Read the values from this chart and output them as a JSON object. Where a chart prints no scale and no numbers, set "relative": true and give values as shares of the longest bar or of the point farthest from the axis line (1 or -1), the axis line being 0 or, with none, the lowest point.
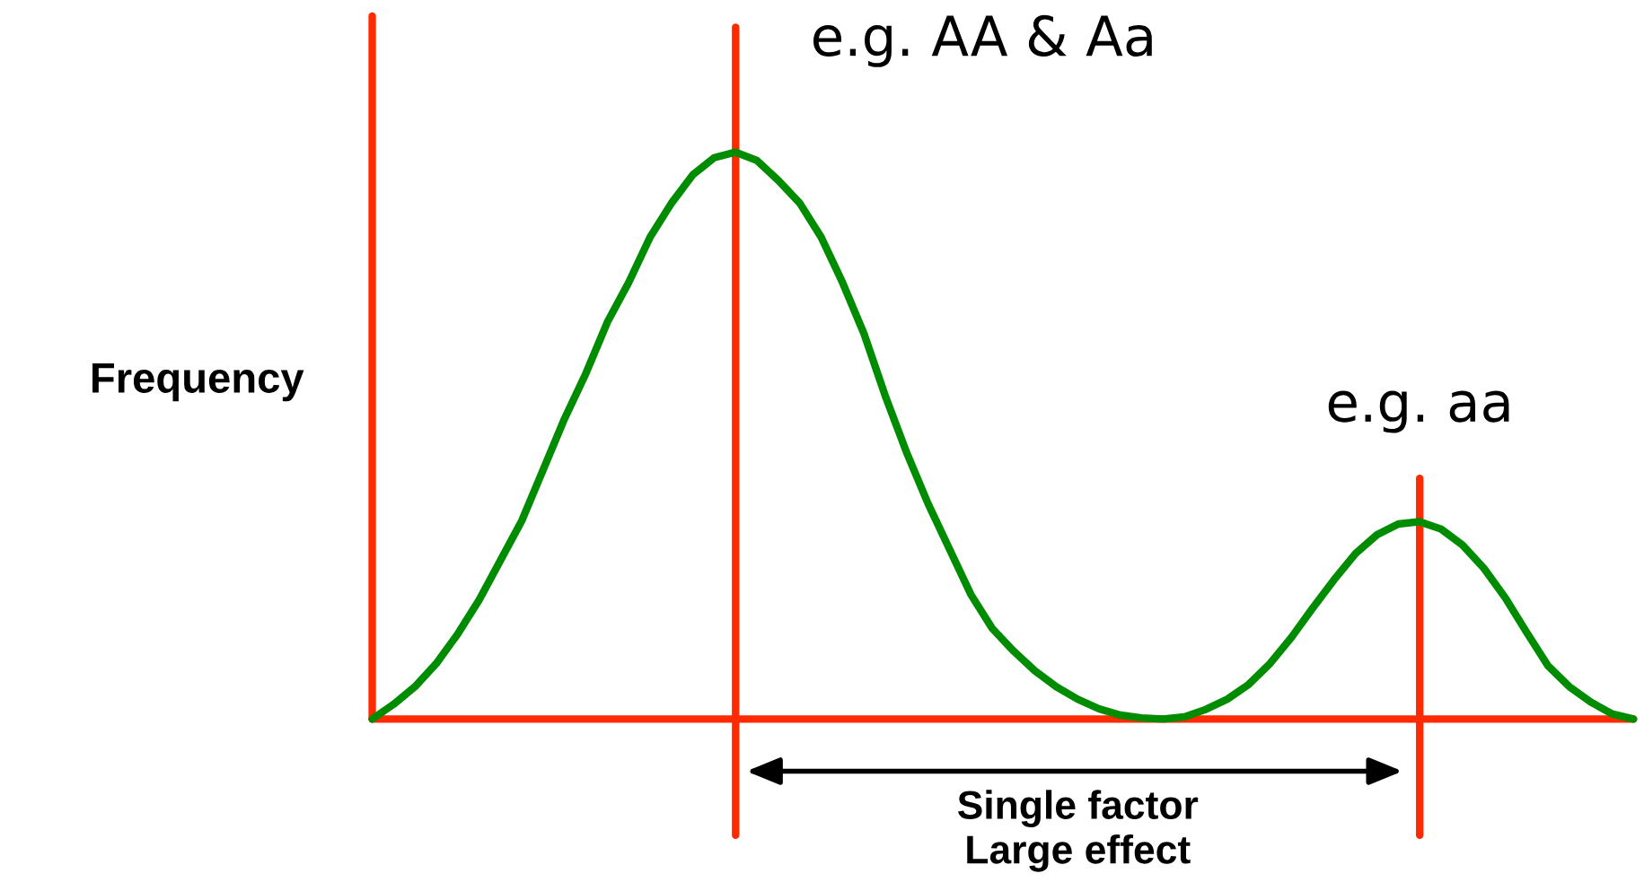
{
  "chart_data": {
    "type": "line",
    "relative": true,
    "ylabel": "Frequency",
    "categories": [
      null,
      null,
      null,
      null,
      null,
      null,
      null,
      null,
      null,
      null,
      null,
      null,
      null,
      null,
      null,
      null,
      null,
      null,
      null,
      null,
      null,
      null,
      null,
      null,
      null,
      null,
      null,
      null,
      null,
      null,
      null,
      null,
      null,
      null,
      null,
      null,
      null,
      null,
      null,
      null,
      null,
      null,
      null,
      null,
      null,
      null,
      null,
      null,
      null,
      null,
      null,
      null,
      null,
      null,
      null,
      null,
      null,
      null,
      null,
      null
    ],
    "series": [
      {
        "color": "#008c00",
        "values": [
          0,
          0.026,
          0.057,
          0.098,
          0.15,
          0.21,
          0.28,
          0.35,
          0.44,
          0.53,
          0.61,
          0.7,
          0.77,
          0.85,
          0.91,
          0.96,
          0.99,
          1,
          0.985,
          0.95,
          0.91,
          0.85,
          0.77,
          0.68,
          0.57,
          0.47,
          0.38,
          0.3,
          0.22,
          0.16,
          0.12,
          0.085,
          0.057,
          0.035,
          0.018,
          0.007,
          0.002,
          0,
          0.004,
          0.017,
          0.035,
          0.061,
          0.098,
          0.144,
          0.196,
          0.246,
          0.292,
          0.325,
          0.344,
          0.348,
          0.335,
          0.307,
          0.266,
          0.214,
          0.153,
          0.094,
          0.057,
          0.03,
          0.009,
          0
        ]
      }
    ],
    "annotations": [
      "e.g. AA & Aa",
      "e.g. aa",
      "Single factor\nLarge effect"
    ]
  }
}
